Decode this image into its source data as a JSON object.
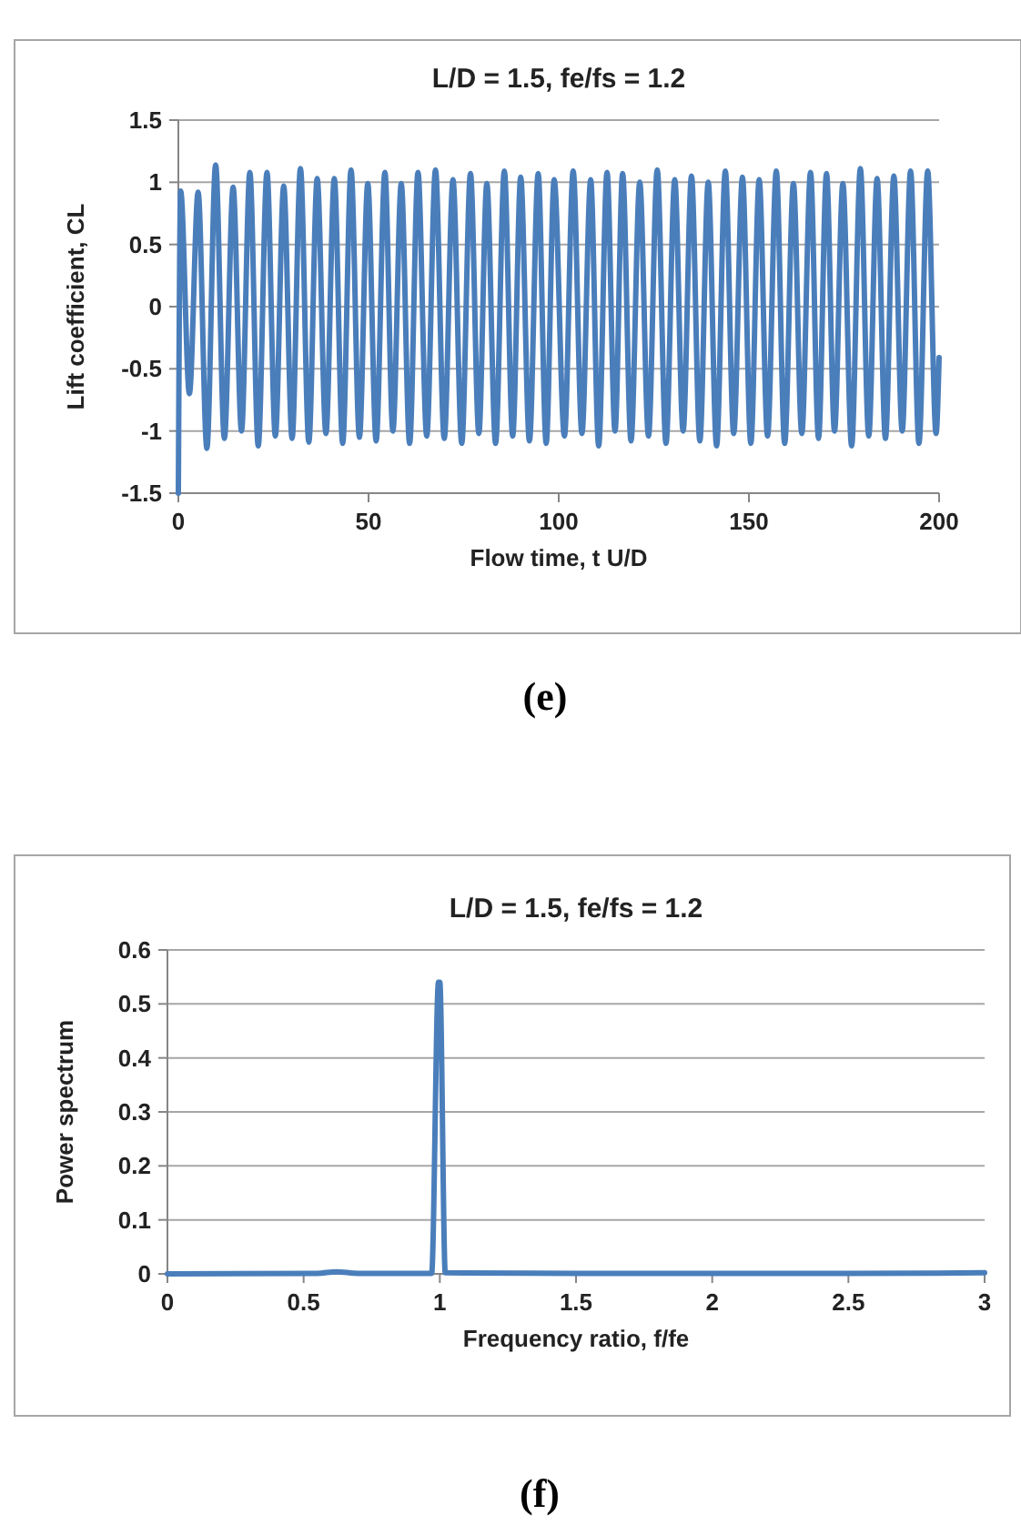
{
  "chart_data": [
    {
      "type": "line",
      "title": "L/D = 1.5, fe/fs = 1.2",
      "xlabel": "Flow time, t U/D",
      "ylabel": "Lift coefficient, CL",
      "annotations": [
        "(e)"
      ],
      "xlim": [
        0,
        200
      ],
      "xticks": [
        0,
        50,
        100,
        150,
        200
      ],
      "ylim": [
        -1.5,
        1.5
      ],
      "yticks": [
        -1.5,
        -1,
        -0.5,
        0,
        0.5,
        1,
        1.5
      ],
      "grid": "y",
      "series": [
        {
          "color": "#4a7ebb",
          "x": [
            0,
            0.6,
            2.9,
            5.2,
            7.5,
            9.8,
            12.1,
            14.4,
            16.6,
            18.8,
            21.0,
            23.3,
            25.5,
            27.7,
            29.9,
            32.1,
            34.3,
            36.5,
            38.8,
            41.0,
            43.2,
            45.4,
            47.6,
            49.8,
            52.0,
            54.3,
            56.4,
            58.6,
            60.8,
            63.0,
            65.3,
            67.6,
            69.9,
            72.2,
            74.5,
            76.8,
            79.0,
            81.1,
            83.4,
            85.7,
            87.9,
            90.0,
            92.3,
            94.6,
            96.7,
            98.8,
            101.5,
            103.8,
            106.1,
            108.4,
            110.5,
            112.7,
            114.8,
            116.8,
            119.0,
            121.3,
            123.6,
            125.9,
            128.2,
            130.5,
            132.7,
            134.9,
            137.1,
            139.3,
            141.5,
            143.8,
            146.0,
            148.3,
            150.5,
            152.7,
            154.9,
            157.2,
            159.4,
            161.7,
            163.9,
            166.2,
            168.3,
            170.4,
            172.5,
            174.7,
            177.0,
            179.3,
            181.5,
            183.7,
            185.9,
            188.1,
            190.3,
            192.5,
            194.7,
            197.0,
            199.2,
            200
          ],
          "values": [
            -1.5,
            0.93,
            -0.7,
            0.92,
            -1.14,
            1.14,
            -1.06,
            0.96,
            -1.0,
            1.08,
            -1.12,
            1.08,
            -1.04,
            0.97,
            -1.06,
            1.11,
            -1.09,
            1.03,
            -1.02,
            1.03,
            -1.1,
            1.1,
            -1.05,
            0.99,
            -1.08,
            1.08,
            -1.0,
            0.99,
            -1.1,
            1.08,
            -1.04,
            1.1,
            -1.06,
            1.02,
            -1.1,
            1.07,
            -1.02,
            0.99,
            -1.1,
            1.09,
            -1.04,
            1.04,
            -1.08,
            1.07,
            -1.1,
            1.02,
            -1.04,
            1.09,
            -1.02,
            1.02,
            -1.12,
            1.08,
            -1.0,
            1.07,
            -1.08,
            1.0,
            -1.04,
            1.1,
            -1.1,
            1.02,
            -1.0,
            1.05,
            -1.08,
            1.0,
            -1.12,
            1.09,
            -1.02,
            1.04,
            -1.1,
            1.02,
            -1.04,
            1.09,
            -1.1,
            0.99,
            -1.02,
            1.08,
            -1.06,
            1.07,
            -1.0,
            0.99,
            -1.12,
            1.11,
            -1.04,
            1.03,
            -1.06,
            1.05,
            -1.0,
            1.09,
            -1.1,
            1.09,
            -1.02,
            -0.41
          ]
        }
      ]
    },
    {
      "type": "line",
      "title": "L/D = 1.5, fe/fs = 1.2",
      "xlabel": "Frequency ratio, f/fe",
      "ylabel": "Power spectrum",
      "annotations": [
        "(f)"
      ],
      "xlim": [
        0,
        3
      ],
      "xticks": [
        0,
        0.5,
        1,
        1.5,
        2,
        2.5,
        3
      ],
      "ylim": [
        0,
        0.6
      ],
      "yticks": [
        0,
        0.1,
        0.2,
        0.3,
        0.4,
        0.5,
        0.6
      ],
      "grid": "y",
      "series": [
        {
          "color": "#4a7ebb",
          "x": [
            0,
            0.55,
            0.62,
            0.7,
            0.97,
            0.995,
            1.0,
            1.02,
            1.5,
            2.5,
            3
          ],
          "values": [
            0,
            0.001,
            0.004,
            0.001,
            0.001,
            0.54,
            0.54,
            0.002,
            0.001,
            0.001,
            0.002
          ]
        }
      ]
    }
  ]
}
